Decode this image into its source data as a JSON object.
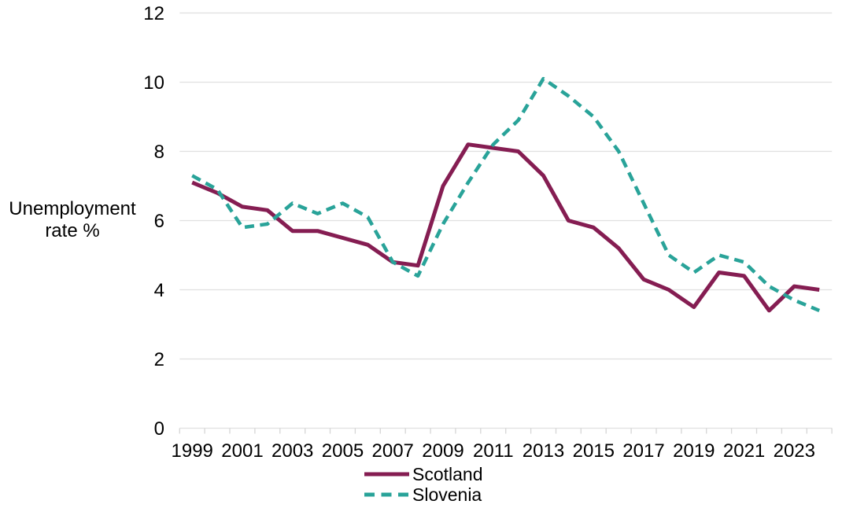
{
  "chart_data": {
    "type": "line",
    "title": "",
    "x": [
      1999,
      2000,
      2001,
      2002,
      2003,
      2004,
      2005,
      2006,
      2007,
      2008,
      2009,
      2010,
      2011,
      2012,
      2013,
      2014,
      2015,
      2016,
      2017,
      2018,
      2019,
      2020,
      2021,
      2022,
      2023,
      2024
    ],
    "series": [
      {
        "name": "Scotland",
        "style": "solid",
        "color": "#851D52",
        "values": [
          7.1,
          6.8,
          6.4,
          6.3,
          5.7,
          5.7,
          5.5,
          5.3,
          4.8,
          4.7,
          7.0,
          8.2,
          8.1,
          8.0,
          7.3,
          6.0,
          5.8,
          5.2,
          4.3,
          4.0,
          3.5,
          4.5,
          4.4,
          3.4,
          4.1,
          4.0
        ]
      },
      {
        "name": "Slovenia",
        "style": "dashed",
        "color": "#29A399",
        "values": [
          7.3,
          6.9,
          5.8,
          5.9,
          6.5,
          6.2,
          6.5,
          6.1,
          4.8,
          4.4,
          5.9,
          7.1,
          8.2,
          8.9,
          10.1,
          9.6,
          9.0,
          8.0,
          6.5,
          5.0,
          4.5,
          5.0,
          4.8,
          4.1,
          3.7,
          3.4
        ]
      }
    ],
    "xlabel": "",
    "ylabel": "Unemployment rate %",
    "ylabel_lines": [
      "Unemployment",
      "rate %"
    ],
    "ylim": [
      0,
      12
    ],
    "yticks": [
      0,
      2,
      4,
      6,
      8,
      10,
      12
    ],
    "xtick_labels": [
      1999,
      2001,
      2003,
      2005,
      2007,
      2009,
      2011,
      2013,
      2015,
      2017,
      2019,
      2021,
      2023
    ],
    "grid": "horizontal",
    "legend_position": "bottom-center"
  },
  "style_colors": {
    "gridline": "#E0E0E0",
    "tick": "#D6D6D6",
    "text": "#000000",
    "background": "#FFFFFF"
  }
}
